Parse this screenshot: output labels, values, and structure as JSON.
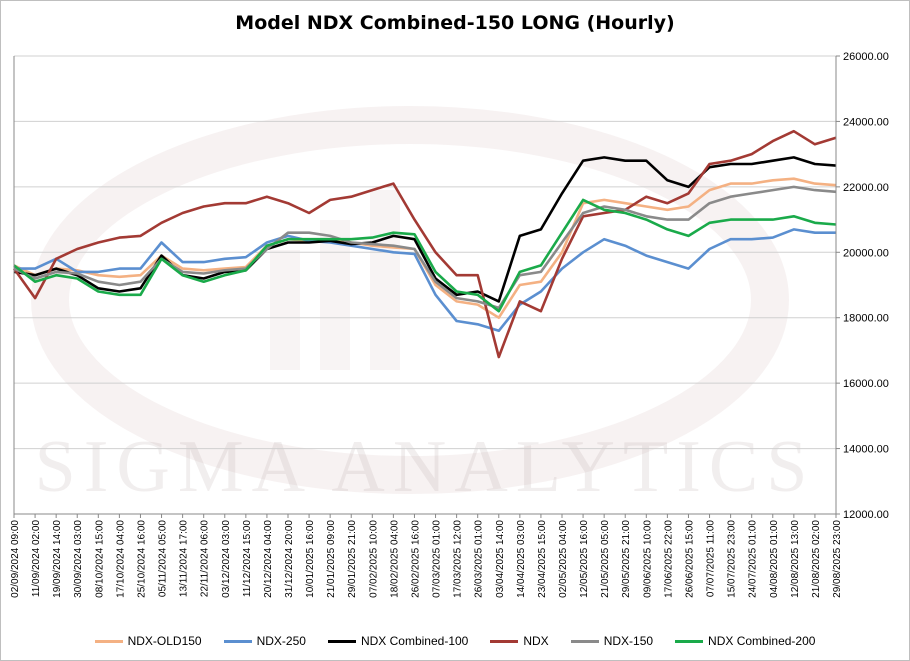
{
  "chart_data": {
    "type": "line",
    "title": "Model NDX Combined-150 LONG (Hourly)",
    "watermark": "SIGMA ANALYTICS",
    "ylim": [
      12000,
      26000
    ],
    "y_ticks": [
      "12000.00",
      "14000.00",
      "16000.00",
      "18000.00",
      "20000.00",
      "22000.00",
      "24000.00",
      "26000.00"
    ],
    "grid": "horizontal",
    "legend_position": "bottom",
    "x_tick_labels": [
      "02/09/2024 09:00",
      "11/09/2024 02:00",
      "19/09/2024 14:00",
      "30/09/2024 03:00",
      "08/10/2024 15:00",
      "17/10/2024 04:00",
      "25/10/2024 16:00",
      "05/11/2024 05:00",
      "13/11/2024 17:00",
      "22/11/2024 06:00",
      "03/12/2024 03:00",
      "11/12/2024 15:00",
      "20/12/2024 04:00",
      "31/12/2024 20:00",
      "10/01/2025 16:00",
      "21/01/2025 09:00",
      "29/01/2025 21:00",
      "07/02/2025 10:00",
      "18/02/2025 04:00",
      "26/02/2025 16:00",
      "07/03/2025 01:00",
      "17/03/2025 12:00",
      "26/03/2025 01:00",
      "03/04/2025 14:00",
      "14/04/2025 03:00",
      "23/04/2025 15:00",
      "02/05/2025 04:00",
      "12/05/2025 16:00",
      "21/05/2025 05:00",
      "29/05/2025 21:00",
      "09/06/2025 10:00",
      "17/06/2025 22:00",
      "26/06/2025 15:00",
      "07/07/2025 11:00",
      "15/07/2025 23:00",
      "24/07/2025 01:00",
      "04/08/2025 01:00",
      "12/08/2025 13:00",
      "21/08/2025 02:00",
      "29/08/2025 23:00"
    ],
    "x": [
      0,
      1,
      2,
      3,
      4,
      5,
      6,
      7,
      8,
      9,
      10,
      11,
      12,
      13,
      14,
      15,
      16,
      17,
      18,
      19,
      20,
      21,
      22,
      23,
      24,
      25,
      26,
      27,
      28,
      29,
      30,
      31,
      32,
      33,
      34,
      35,
      36,
      37,
      38,
      39
    ],
    "series": [
      {
        "name": "NDX-OLD150",
        "color": "#f4b183",
        "values": [
          19600,
          19300,
          19500,
          19450,
          19300,
          19250,
          19300,
          19900,
          19500,
          19450,
          19500,
          19550,
          20200,
          20400,
          20350,
          20400,
          20300,
          20200,
          20150,
          20100,
          19000,
          18500,
          18400,
          18000,
          19000,
          19100,
          20000,
          21500,
          21600,
          21500,
          21400,
          21300,
          21400,
          21900,
          22100,
          22100,
          22200,
          22250,
          22100,
          22050
        ]
      },
      {
        "name": "NDX-250",
        "color": "#5b8fd0",
        "values": [
          19500,
          19500,
          19800,
          19400,
          19400,
          19500,
          19500,
          20300,
          19700,
          19700,
          19800,
          19850,
          20300,
          20500,
          20350,
          20300,
          20200,
          20100,
          20000,
          19950,
          18700,
          17900,
          17800,
          17600,
          18400,
          18800,
          19500,
          20000,
          20400,
          20200,
          19900,
          19700,
          19500,
          20100,
          20400,
          20400,
          20450,
          20700,
          20600,
          20600
        ]
      },
      {
        "name": "NDX Combined-100",
        "color": "#000000",
        "values": [
          19400,
          19300,
          19500,
          19300,
          18900,
          18800,
          18900,
          19900,
          19300,
          19200,
          19400,
          19450,
          20100,
          20300,
          20300,
          20350,
          20250,
          20300,
          20500,
          20400,
          19200,
          18700,
          18800,
          18500,
          20500,
          20700,
          21800,
          22800,
          22900,
          22800,
          22800,
          22200,
          22000,
          22600,
          22700,
          22700,
          22800,
          22900,
          22700,
          22650
        ]
      },
      {
        "name": "NDX",
        "color": "#a33a34",
        "values": [
          19500,
          18600,
          19800,
          20100,
          20300,
          20450,
          20500,
          20900,
          21200,
          21400,
          21500,
          21500,
          21700,
          21500,
          21200,
          21600,
          21700,
          21900,
          22100,
          21000,
          20000,
          19300,
          19300,
          16800,
          18500,
          18200,
          19800,
          21100,
          21200,
          21300,
          21700,
          21500,
          21800,
          22700,
          22800,
          23000,
          23400,
          23700,
          23300,
          23500
        ]
      },
      {
        "name": "NDX-150",
        "color": "#8a8a8a",
        "values": [
          19500,
          19200,
          19400,
          19350,
          19100,
          19000,
          19100,
          19800,
          19400,
          19350,
          19450,
          19500,
          20100,
          20600,
          20600,
          20500,
          20300,
          20250,
          20200,
          20100,
          19100,
          18600,
          18500,
          18300,
          19300,
          19400,
          20300,
          21200,
          21400,
          21300,
          21100,
          21000,
          21000,
          21500,
          21700,
          21800,
          21900,
          22000,
          21900,
          21850
        ]
      },
      {
        "name": "NDX Combined-200",
        "color": "#1aaa4a",
        "values": [
          19600,
          19100,
          19300,
          19200,
          18800,
          18700,
          18700,
          19800,
          19300,
          19100,
          19300,
          19450,
          20200,
          20400,
          20400,
          20400,
          20400,
          20450,
          20600,
          20550,
          19400,
          18800,
          18700,
          18200,
          19400,
          19600,
          20600,
          21600,
          21300,
          21200,
          21000,
          20700,
          20500,
          20900,
          21000,
          21000,
          21000,
          21100,
          20900,
          20850
        ]
      }
    ]
  }
}
